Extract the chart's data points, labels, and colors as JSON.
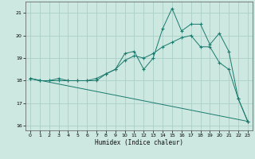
{
  "xlabel": "Humidex (Indice chaleur)",
  "background_color": "#cce8e0",
  "grid_color": "#aacfc8",
  "line_color": "#1a7a6e",
  "xlim": [
    -0.5,
    23.5
  ],
  "ylim": [
    15.8,
    21.5
  ],
  "xticks": [
    0,
    1,
    2,
    3,
    4,
    5,
    6,
    7,
    8,
    9,
    10,
    11,
    12,
    13,
    14,
    15,
    16,
    17,
    18,
    19,
    20,
    21,
    22,
    23
  ],
  "yticks": [
    16,
    17,
    18,
    19,
    20,
    21
  ],
  "series": [
    {
      "x": [
        0,
        1,
        2,
        3,
        4,
        5,
        6,
        7,
        8,
        9,
        10,
        11,
        12,
        13,
        14,
        15,
        16,
        17,
        18,
        19,
        20,
        21,
        22,
        23
      ],
      "y": [
        18.1,
        18.0,
        18.0,
        18.1,
        18.0,
        18.0,
        18.0,
        18.0,
        18.3,
        18.5,
        19.2,
        19.3,
        18.5,
        19.0,
        20.3,
        21.2,
        20.2,
        20.5,
        20.5,
        19.6,
        20.1,
        19.3,
        17.2,
        16.2
      ],
      "marker": true,
      "style": "solid"
    },
    {
      "x": [
        0,
        1,
        2,
        3,
        4,
        5,
        6,
        7,
        8,
        9,
        10,
        11,
        12,
        13,
        14,
        15,
        16,
        17,
        18,
        19,
        20,
        21,
        22,
        23
      ],
      "y": [
        18.1,
        18.0,
        18.0,
        18.0,
        18.0,
        18.0,
        18.0,
        18.1,
        18.3,
        18.5,
        18.9,
        19.1,
        19.0,
        19.2,
        19.5,
        19.7,
        19.9,
        20.0,
        19.5,
        19.5,
        18.8,
        18.5,
        17.2,
        16.2
      ],
      "marker": true,
      "style": "solid"
    },
    {
      "x": [
        0,
        23
      ],
      "y": [
        18.1,
        16.2
      ],
      "marker": false,
      "style": "solid"
    }
  ]
}
